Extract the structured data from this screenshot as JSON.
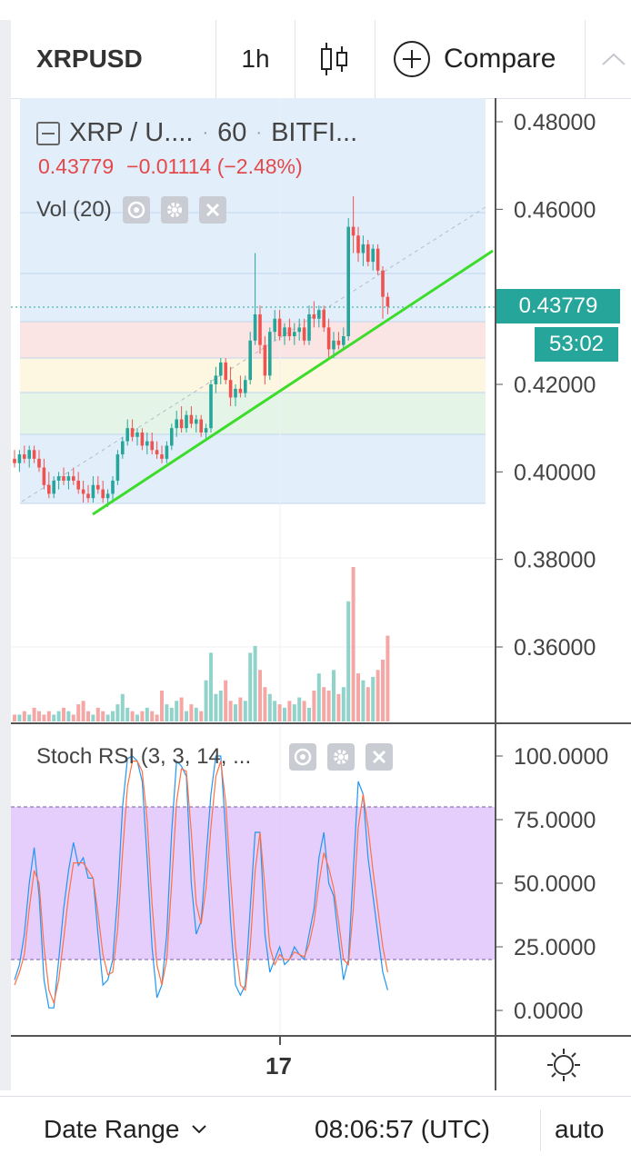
{
  "toolbar": {
    "symbol": "XRPUSD",
    "interval": "1h",
    "compare_label": "Compare"
  },
  "legend": {
    "symbol": "XRP / U....",
    "interval": "60",
    "exchange": "BITFI...",
    "last_price": "0.43779",
    "change": "−0.01114 (−2.48%)"
  },
  "volume_legend": "Vol (20)",
  "stoch_legend": "Stoch RSI (3, 3, 14, ...",
  "price_axis": {
    "ticks": [
      "0.48000",
      "0.46000",
      "0.42000",
      "0.40000",
      "0.38000",
      "0.36000"
    ],
    "current_price": "0.43779",
    "countdown": "53:02"
  },
  "stoch_axis": {
    "ticks": [
      "100.0000",
      "75.0000",
      "50.0000",
      "25.0000",
      "0.0000"
    ]
  },
  "time_axis": {
    "label": "17"
  },
  "bottom_bar": {
    "date_range": "Date Range",
    "clock": "08:06:57 (UTC)",
    "scale_mode": "auto"
  },
  "colors": {
    "up": "#26a69a",
    "down": "#ef5350",
    "trendline": "#3ddc2a",
    "stoch_k": "#2196f3",
    "stoch_d": "#ff7043",
    "stoch_band": "#e1c6fb",
    "fib_bg": "#e3eefb"
  },
  "chart_data": [
    {
      "type": "candlestick",
      "symbol": "XRP / U....",
      "interval": "60",
      "exchange": "BITFI...",
      "ylim": [
        0.345,
        0.485
      ],
      "x_tick": "17",
      "candles": [
        [
          0.403,
          0.405,
          0.401,
          0.402
        ],
        [
          0.402,
          0.405,
          0.4,
          0.404
        ],
        [
          0.404,
          0.406,
          0.402,
          0.403
        ],
        [
          0.403,
          0.406,
          0.401,
          0.405
        ],
        [
          0.405,
          0.406,
          0.402,
          0.403
        ],
        [
          0.403,
          0.405,
          0.4,
          0.401
        ],
        [
          0.401,
          0.403,
          0.396,
          0.397
        ],
        [
          0.397,
          0.4,
          0.394,
          0.395
        ],
        [
          0.395,
          0.399,
          0.394,
          0.398
        ],
        [
          0.398,
          0.4,
          0.396,
          0.399
        ],
        [
          0.399,
          0.401,
          0.397,
          0.398
        ],
        [
          0.398,
          0.4,
          0.396,
          0.399
        ],
        [
          0.399,
          0.401,
          0.397,
          0.398
        ],
        [
          0.398,
          0.4,
          0.395,
          0.396
        ],
        [
          0.396,
          0.398,
          0.393,
          0.395
        ],
        [
          0.395,
          0.397,
          0.393,
          0.394
        ],
        [
          0.394,
          0.399,
          0.393,
          0.397
        ],
        [
          0.397,
          0.399,
          0.395,
          0.396
        ],
        [
          0.396,
          0.398,
          0.393,
          0.394
        ],
        [
          0.394,
          0.396,
          0.392,
          0.395
        ],
        [
          0.395,
          0.399,
          0.393,
          0.398
        ],
        [
          0.398,
          0.405,
          0.397,
          0.404
        ],
        [
          0.404,
          0.408,
          0.403,
          0.407
        ],
        [
          0.407,
          0.412,
          0.406,
          0.41
        ],
        [
          0.41,
          0.412,
          0.407,
          0.408
        ],
        [
          0.408,
          0.41,
          0.406,
          0.409
        ],
        [
          0.409,
          0.41,
          0.405,
          0.406
        ],
        [
          0.406,
          0.409,
          0.404,
          0.407
        ],
        [
          0.407,
          0.409,
          0.404,
          0.405
        ],
        [
          0.405,
          0.407,
          0.403,
          0.404
        ],
        [
          0.404,
          0.406,
          0.402,
          0.403
        ],
        [
          0.403,
          0.407,
          0.402,
          0.406
        ],
        [
          0.406,
          0.411,
          0.405,
          0.41
        ],
        [
          0.41,
          0.414,
          0.408,
          0.412
        ],
        [
          0.412,
          0.415,
          0.409,
          0.41
        ],
        [
          0.41,
          0.414,
          0.409,
          0.413
        ],
        [
          0.413,
          0.415,
          0.41,
          0.411
        ],
        [
          0.411,
          0.413,
          0.409,
          0.412
        ],
        [
          0.412,
          0.413,
          0.408,
          0.409
        ],
        [
          0.409,
          0.411,
          0.407,
          0.41
        ],
        [
          0.41,
          0.421,
          0.409,
          0.42
        ],
        [
          0.42,
          0.424,
          0.418,
          0.422
        ],
        [
          0.422,
          0.426,
          0.42,
          0.425
        ],
        [
          0.425,
          0.426,
          0.42,
          0.421
        ],
        [
          0.421,
          0.424,
          0.415,
          0.417
        ],
        [
          0.417,
          0.42,
          0.415,
          0.419
        ],
        [
          0.419,
          0.422,
          0.417,
          0.418
        ],
        [
          0.418,
          0.422,
          0.417,
          0.421
        ],
        [
          0.421,
          0.432,
          0.42,
          0.43
        ],
        [
          0.43,
          0.45,
          0.429,
          0.436
        ],
        [
          0.436,
          0.438,
          0.427,
          0.429
        ],
        [
          0.429,
          0.431,
          0.42,
          0.422
        ],
        [
          0.422,
          0.433,
          0.421,
          0.432
        ],
        [
          0.432,
          0.437,
          0.43,
          0.435
        ],
        [
          0.435,
          0.437,
          0.43,
          0.431
        ],
        [
          0.431,
          0.434,
          0.429,
          0.433
        ],
        [
          0.433,
          0.435,
          0.43,
          0.431
        ],
        [
          0.431,
          0.434,
          0.429,
          0.432
        ],
        [
          0.432,
          0.435,
          0.43,
          0.433
        ],
        [
          0.433,
          0.435,
          0.429,
          0.43
        ],
        [
          0.43,
          0.438,
          0.429,
          0.436
        ],
        [
          0.436,
          0.439,
          0.433,
          0.435
        ],
        [
          0.435,
          0.438,
          0.433,
          0.437
        ],
        [
          0.437,
          0.438,
          0.432,
          0.433
        ],
        [
          0.433,
          0.435,
          0.426,
          0.428
        ],
        [
          0.428,
          0.432,
          0.426,
          0.43
        ],
        [
          0.43,
          0.432,
          0.428,
          0.429
        ],
        [
          0.429,
          0.433,
          0.428,
          0.431
        ],
        [
          0.431,
          0.458,
          0.43,
          0.456
        ],
        [
          0.456,
          0.463,
          0.45,
          0.454
        ],
        [
          0.454,
          0.456,
          0.448,
          0.45
        ],
        [
          0.45,
          0.454,
          0.447,
          0.452
        ],
        [
          0.452,
          0.453,
          0.447,
          0.448
        ],
        [
          0.448,
          0.452,
          0.446,
          0.451
        ],
        [
          0.451,
          0.452,
          0.445,
          0.446
        ],
        [
          0.446,
          0.447,
          0.435,
          0.44
        ],
        [
          0.44,
          0.441,
          0.436,
          0.4378
        ]
      ],
      "volume": [
        2,
        2,
        3,
        2,
        4,
        3,
        2,
        3,
        2,
        3,
        4,
        3,
        2,
        5,
        6,
        3,
        2,
        4,
        3,
        2,
        3,
        5,
        8,
        4,
        3,
        2,
        3,
        4,
        3,
        2,
        9,
        5,
        4,
        6,
        7,
        3,
        5,
        4,
        3,
        12,
        20,
        8,
        9,
        12,
        6,
        5,
        7,
        6,
        20,
        22,
        15,
        10,
        8,
        6,
        5,
        4,
        6,
        5,
        7,
        6,
        4,
        9,
        14,
        10,
        9,
        15,
        8,
        10,
        35,
        45,
        14,
        12,
        10,
        13,
        15,
        18,
        25
      ]
    },
    {
      "type": "line",
      "name": "Stoch RSI (3, 3, 14, ...",
      "ylim": [
        0,
        100
      ],
      "band": [
        20,
        80
      ],
      "series": [
        {
          "values": [
            12,
            18,
            30,
            50,
            64,
            45,
            12,
            1,
            1,
            20,
            40,
            55,
            66,
            57,
            60,
            52,
            52,
            30,
            10,
            12,
            20,
            45,
            80,
            99,
            100,
            98,
            90,
            60,
            25,
            5,
            10,
            30,
            70,
            98,
            96,
            92,
            50,
            30,
            35,
            60,
            85,
            100,
            100,
            70,
            35,
            10,
            6,
            10,
            40,
            70,
            70,
            30,
            15,
            20,
            25,
            18,
            20,
            25,
            22,
            20,
            30,
            40,
            60,
            70,
            50,
            45,
            28,
            12,
            20,
            55,
            90,
            85,
            60,
            45,
            30,
            15,
            8
          ]
        },
        {
          "values": [
            10,
            15,
            22,
            40,
            55,
            50,
            25,
            8,
            3,
            12,
            28,
            45,
            58,
            58,
            58,
            55,
            52,
            38,
            22,
            14,
            15,
            32,
            62,
            88,
            98,
            98,
            94,
            75,
            42,
            18,
            10,
            20,
            50,
            82,
            95,
            94,
            70,
            42,
            34,
            48,
            72,
            92,
            98,
            82,
            52,
            25,
            10,
            8,
            25,
            55,
            70,
            48,
            25,
            18,
            22,
            20,
            20,
            23,
            22,
            21,
            26,
            35,
            50,
            62,
            56,
            48,
            35,
            20,
            18,
            40,
            72,
            85,
            72,
            55,
            40,
            25,
            15
          ]
        }
      ]
    }
  ]
}
